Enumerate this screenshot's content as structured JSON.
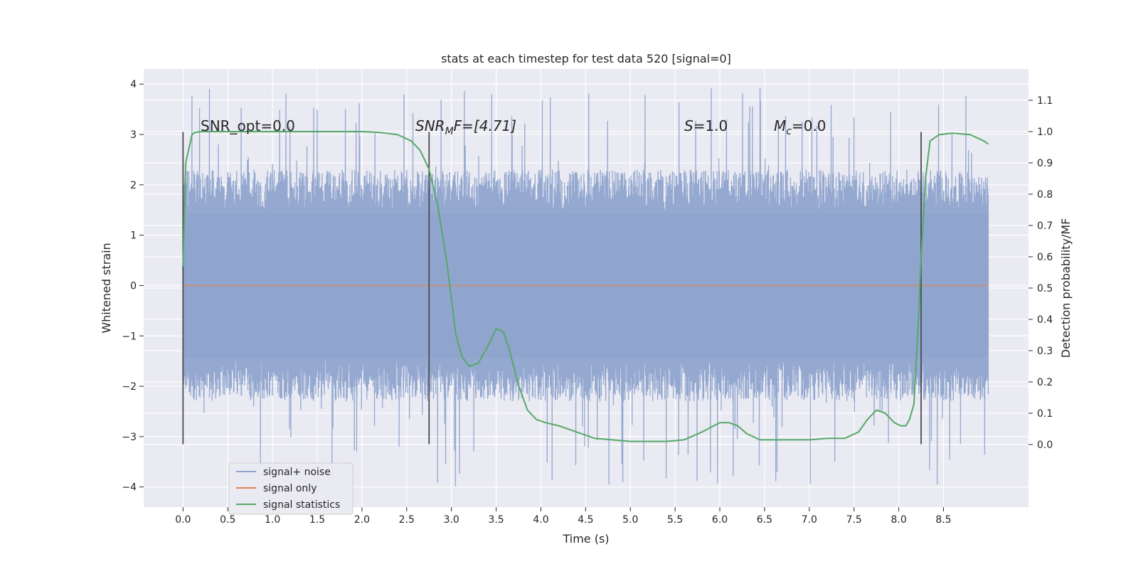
{
  "chart_data": {
    "type": "line",
    "title": "stats at each timestep for test data 520 [signal=0]",
    "xlabel": "Time (s)",
    "ylabel": "Whitened strain",
    "ylabel_right": "Detection probability/MF",
    "xlim": [
      -0.44,
      9.45
    ],
    "ylim": [
      -4.4,
      4.3
    ],
    "ylim_right": [
      -0.2,
      1.2
    ],
    "x_ticks": [
      "0.0",
      "0.5",
      "1.0",
      "1.5",
      "2.0",
      "2.5",
      "3.0",
      "3.5",
      "4.0",
      "4.5",
      "5.0",
      "5.5",
      "6.0",
      "6.5",
      "7.0",
      "7.5",
      "8.0",
      "8.5"
    ],
    "y_ticks": [
      "4",
      "3",
      "2",
      "1",
      "0",
      "−1",
      "−2",
      "−3",
      "−4"
    ],
    "y_ticks_right": [
      "1.1",
      "1.0",
      "0.9",
      "0.8",
      "0.7",
      "0.6",
      "0.5",
      "0.4",
      "0.3",
      "0.2",
      "0.1",
      "0.0"
    ],
    "grid": true,
    "legend_position": "lower-left",
    "legend": [
      "signal+ noise",
      "signal only",
      "signal statistics"
    ],
    "annotations": {
      "snr_opt": "SNR_opt=0.0",
      "snr_mf_prefix": "SNR",
      "snr_mf_sub": "M",
      "snr_mf_suffix": "F=[4.71]",
      "s_var": "S",
      "s_value": "=1.0",
      "mc_var": "M",
      "mc_sub": "c",
      "mc_value": "=0.0"
    },
    "vertical_markers": [
      0.0,
      2.75,
      8.25
    ],
    "marker_range": [
      -3.15,
      3.05
    ],
    "colors": {
      "noise": "#8fa4ce",
      "signal_only": "#dd8452",
      "statistics": "#55a868",
      "marker": "#4a4a55",
      "plot_bg": "#eaeaf2",
      "grid": "#ffffff"
    },
    "series": [
      {
        "name": "signal+ noise",
        "x_range": [
          0.0,
          9.0
        ],
        "band_envelope": {
          "x": [
            0.0,
            9.0
          ],
          "upper": 2.3,
          "lower": -2.3
        },
        "extremes": {
          "max": 3.95,
          "min": -4.0
        }
      },
      {
        "name": "signal only",
        "x": [
          0.0,
          9.0
        ],
        "values": [
          0.0,
          0.0
        ]
      },
      {
        "name": "signal statistics",
        "axis": "right",
        "x": [
          0.0,
          0.03,
          0.1,
          0.13,
          0.2,
          0.5,
          1.0,
          1.5,
          2.0,
          2.2,
          2.4,
          2.55,
          2.65,
          2.75,
          2.85,
          2.95,
          3.05,
          3.12,
          3.2,
          3.3,
          3.4,
          3.5,
          3.58,
          3.65,
          3.75,
          3.85,
          3.95,
          4.05,
          4.2,
          4.4,
          4.6,
          5.0,
          5.4,
          5.6,
          5.8,
          6.0,
          6.1,
          6.2,
          6.3,
          6.45,
          6.6,
          6.8,
          7.0,
          7.2,
          7.4,
          7.55,
          7.65,
          7.75,
          7.85,
          7.95,
          8.02,
          8.08,
          8.12,
          8.17,
          8.22,
          8.25,
          8.3,
          8.35,
          8.45,
          8.6,
          8.8,
          8.95,
          9.0
        ],
        "values": [
          0.57,
          0.9,
          0.99,
          0.997,
          1.0,
          1.0,
          1.0,
          1.0,
          1.0,
          0.997,
          0.99,
          0.97,
          0.94,
          0.88,
          0.76,
          0.58,
          0.35,
          0.28,
          0.25,
          0.26,
          0.31,
          0.37,
          0.36,
          0.3,
          0.19,
          0.11,
          0.08,
          0.07,
          0.06,
          0.04,
          0.02,
          0.01,
          0.01,
          0.015,
          0.04,
          0.07,
          0.07,
          0.06,
          0.035,
          0.015,
          0.015,
          0.015,
          0.015,
          0.02,
          0.02,
          0.04,
          0.08,
          0.11,
          0.1,
          0.07,
          0.06,
          0.06,
          0.08,
          0.13,
          0.4,
          0.6,
          0.85,
          0.97,
          0.99,
          0.995,
          0.99,
          0.97,
          0.96
        ]
      }
    ]
  }
}
